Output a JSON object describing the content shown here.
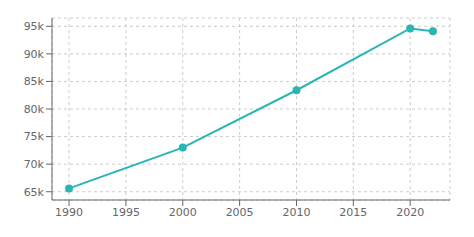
{
  "chart_data": {
    "type": "line",
    "x": [
      1990,
      2000,
      2010,
      2020,
      2022
    ],
    "values": [
      65600,
      73000,
      83400,
      94600,
      94100
    ],
    "color": "#2ab5b5",
    "marker": "circle",
    "xlim": [
      1988.5,
      2023.5
    ],
    "ylim": [
      63500,
      96500
    ],
    "xticks": [
      1990,
      1995,
      2000,
      2005,
      2010,
      2015,
      2020
    ],
    "yticks": [
      {
        "value": 65000,
        "label": "65k"
      },
      {
        "value": 70000,
        "label": "70k"
      },
      {
        "value": 75000,
        "label": "75k"
      },
      {
        "value": 80000,
        "label": "80k"
      },
      {
        "value": 85000,
        "label": "85k"
      },
      {
        "value": 90000,
        "label": "90k"
      },
      {
        "value": 95000,
        "label": "95k"
      }
    ],
    "grid": true
  }
}
